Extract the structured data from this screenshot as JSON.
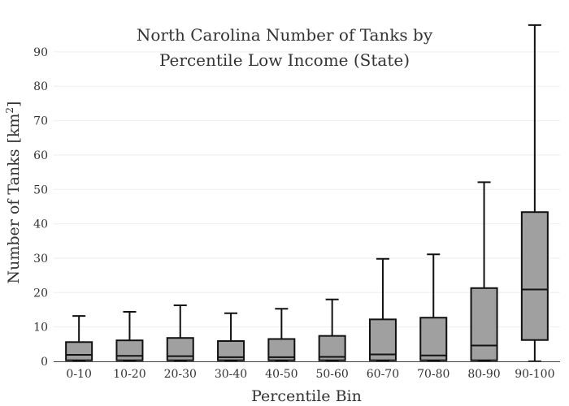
{
  "chart_data": {
    "type": "box",
    "title_lines": [
      "North Carolina Number of Tanks by",
      "Percentile Low Income (State)"
    ],
    "xlabel": "Percentile Bin",
    "ylabel": "Number of Tanks",
    "ylabel_unit_base": "[km",
    "ylabel_unit_sup": "2",
    "ylabel_unit_end": "]",
    "ylim": [
      0,
      98
    ],
    "yticks": [
      0,
      10,
      20,
      30,
      40,
      50,
      60,
      70,
      80,
      90
    ],
    "grid": true,
    "categories": [
      "0-10",
      "10-20",
      "20-30",
      "30-40",
      "40-50",
      "50-60",
      "60-70",
      "70-80",
      "80-90",
      "90-100"
    ],
    "boxes": [
      {
        "category": "0-10",
        "min": 0,
        "q1": 0.3,
        "median": 1.9,
        "q3": 5.6,
        "max": 13.2
      },
      {
        "category": "10-20",
        "min": 0,
        "q1": 0.3,
        "median": 1.6,
        "q3": 6.1,
        "max": 14.4
      },
      {
        "category": "20-30",
        "min": 0,
        "q1": 0.3,
        "median": 1.5,
        "q3": 6.8,
        "max": 16.3
      },
      {
        "category": "30-40",
        "min": 0,
        "q1": 0.3,
        "median": 1.2,
        "q3": 5.9,
        "max": 14.0
      },
      {
        "category": "40-50",
        "min": 0,
        "q1": 0.3,
        "median": 1.2,
        "q3": 6.5,
        "max": 15.3
      },
      {
        "category": "50-60",
        "min": 0,
        "q1": 0.3,
        "median": 1.3,
        "q3": 7.4,
        "max": 18.0
      },
      {
        "category": "60-70",
        "min": 0,
        "q1": 0.3,
        "median": 2.0,
        "q3": 12.2,
        "max": 29.8
      },
      {
        "category": "70-80",
        "min": 0,
        "q1": 0.3,
        "median": 1.7,
        "q3": 12.7,
        "max": 31.1
      },
      {
        "category": "80-90",
        "min": 0,
        "q1": 0.3,
        "median": 4.6,
        "q3": 21.3,
        "max": 52.1
      },
      {
        "category": "90-100",
        "min": 0,
        "q1": 6.2,
        "median": 20.9,
        "q3": 43.4,
        "max": 97.8
      }
    ],
    "box_fill": "#a0a0a0",
    "box_stroke": "#111111"
  }
}
